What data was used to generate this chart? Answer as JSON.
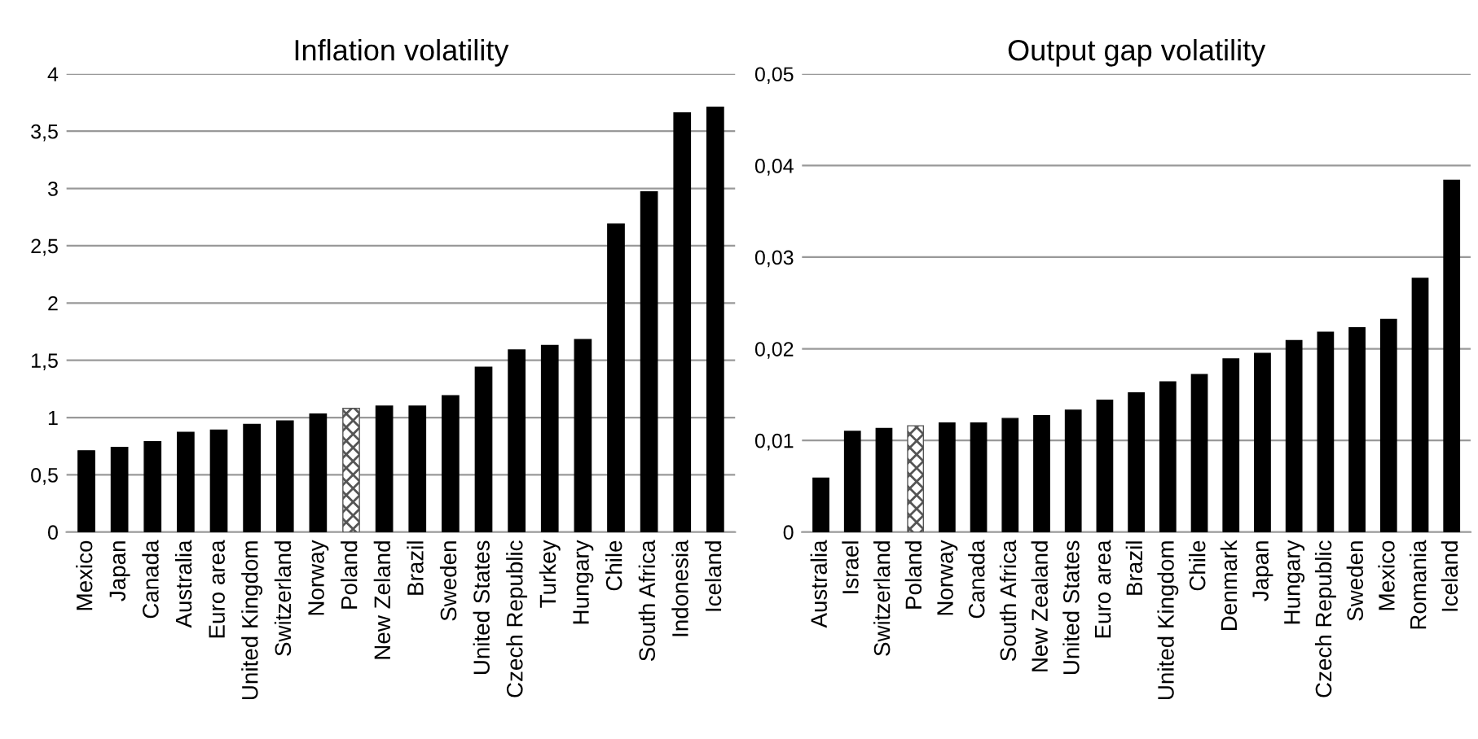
{
  "chart_data": [
    {
      "type": "bar",
      "title": "Inflation volatility",
      "categories": [
        "Mexico",
        "Japan",
        "Canada",
        "Australia",
        "Euro area",
        "United Kingdom",
        "Switzerland",
        "Norway",
        "Poland",
        "New Zeland",
        "Brazil",
        "Sweden",
        "United States",
        "Czech Republic",
        "Turkey",
        "Hungary",
        "Chile",
        "South Africa",
        "Indonesia",
        "Iceland"
      ],
      "values": [
        0.71,
        0.74,
        0.79,
        0.87,
        0.89,
        0.94,
        0.97,
        1.03,
        1.08,
        1.1,
        1.1,
        1.19,
        1.44,
        1.59,
        1.63,
        1.68,
        2.69,
        2.97,
        3.66,
        3.71
      ],
      "colors": [
        "#000000",
        "#000000",
        "#000000",
        "#000000",
        "#000000",
        "#000000",
        "#000000",
        "#000000",
        "#555555",
        "#000000",
        "#000000",
        "#000000",
        "#000000",
        "#000000",
        "#000000",
        "#000000",
        "#000000",
        "#000000",
        "#000000",
        "#000000"
      ],
      "ylim": [
        0,
        4
      ],
      "yticks": [
        0,
        {
          "value": 0.5,
          "label": "0,5"
        },
        1,
        {
          "value": 1.5,
          "label": "1,5"
        },
        2,
        {
          "value": 2.5,
          "label": "2,5"
        },
        3,
        {
          "value": 3.5,
          "label": "3,5"
        },
        4
      ],
      "grid": "y"
    },
    {
      "type": "bar",
      "title": "Output gap volatility",
      "categories": [
        "Australia",
        "Israel",
        "Switzerland",
        "Poland",
        "Norway",
        "Canada",
        "South Africa",
        "New Zealand",
        "United States",
        "Euro area",
        "Brazil",
        "United Kingdom",
        "Chile",
        "Denmark",
        "Japan",
        "Hungary",
        "Czech Republic",
        "Sweden",
        "Mexico",
        "Romania",
        "Iceland"
      ],
      "values": [
        0.0059,
        0.011,
        0.0113,
        0.0116,
        0.0119,
        0.0119,
        0.0124,
        0.0127,
        0.0133,
        0.0144,
        0.0152,
        0.0164,
        0.0172,
        0.0189,
        0.0195,
        0.0209,
        0.0218,
        0.0223,
        0.0232,
        0.0277,
        0.0384
      ],
      "colors": [
        "#000000",
        "#000000",
        "#000000",
        "#555555",
        "#000000",
        "#000000",
        "#000000",
        "#000000",
        "#000000",
        "#000000",
        "#000000",
        "#000000",
        "#000000",
        "#000000",
        "#000000",
        "#000000",
        "#000000",
        "#000000",
        "#000000",
        "#000000",
        "#000000"
      ],
      "ylim": [
        0,
        0.05
      ],
      "yticks": [
        0,
        {
          "value": 0.01,
          "label": "0,01"
        },
        {
          "value": 0.02,
          "label": "0,02"
        },
        {
          "value": 0.03,
          "label": "0,03"
        },
        {
          "value": 0.04,
          "label": "0,04"
        },
        {
          "value": 0.05,
          "label": "0,05"
        }
      ],
      "grid": "y"
    }
  ]
}
